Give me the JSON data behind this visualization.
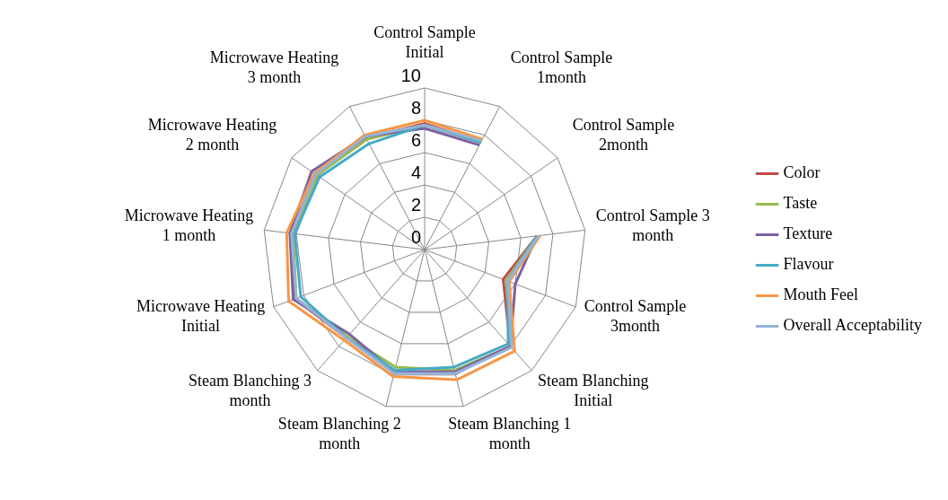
{
  "chart_data": {
    "type": "radar",
    "categories": [
      "Control Sample Initial",
      "Control Sample 1month",
      "Control Sample 2month",
      "Control Sample 3 month",
      "Control Sample 3month",
      "Steam Blanching Initial",
      "Steam Blanching 1 month",
      "Steam Blanching 2 month",
      "Steam Blanching 3 month",
      "Microwave Heating Initial",
      "Microwave Heating 1 month",
      "Microwave Heating 2 month",
      "Microwave Heating 3 month"
    ],
    "series": [
      {
        "name": "Color",
        "color": "#be4b48",
        "values": [
          7.8,
          7.5,
          null,
          7.0,
          5.2,
          8.0,
          7.8,
          7.8,
          7.3,
          8.6,
          8.3,
          8.2,
          7.8
        ]
      },
      {
        "name": "Taste",
        "color": "#98b954",
        "values": [
          7.7,
          7.5,
          null,
          7.0,
          5.4,
          8.0,
          7.7,
          7.5,
          7.2,
          8.5,
          8.2,
          8.1,
          7.7
        ]
      },
      {
        "name": "Texture",
        "color": "#7d60a0",
        "values": [
          7.5,
          7.3,
          null,
          7.0,
          6.0,
          8.0,
          7.8,
          7.8,
          7.0,
          8.7,
          8.4,
          8.5,
          7.9
        ]
      },
      {
        "name": "Flavour",
        "color": "#46aac5",
        "values": [
          7.7,
          7.5,
          null,
          7.0,
          5.5,
          7.8,
          7.5,
          7.7,
          7.3,
          8.2,
          8.1,
          7.9,
          7.4
        ]
      },
      {
        "name": "Mouth Feel",
        "color": "#f79646",
        "values": [
          8.0,
          7.7,
          null,
          7.2,
          5.6,
          8.4,
          8.3,
          8.1,
          7.5,
          9.0,
          8.6,
          8.3,
          8.0
        ]
      },
      {
        "name": "Overall Acceptability",
        "color": "#95b3d7",
        "values": [
          7.7,
          7.6,
          null,
          7.1,
          5.5,
          8.1,
          7.9,
          7.9,
          7.3,
          8.5,
          8.3,
          8.2,
          7.9
        ]
      }
    ],
    "ylim": [
      0,
      10
    ],
    "yticks": [
      0,
      2,
      4,
      6,
      8,
      10
    ],
    "grid": true,
    "legend": "right",
    "marker": "none",
    "line_style": "solid"
  }
}
